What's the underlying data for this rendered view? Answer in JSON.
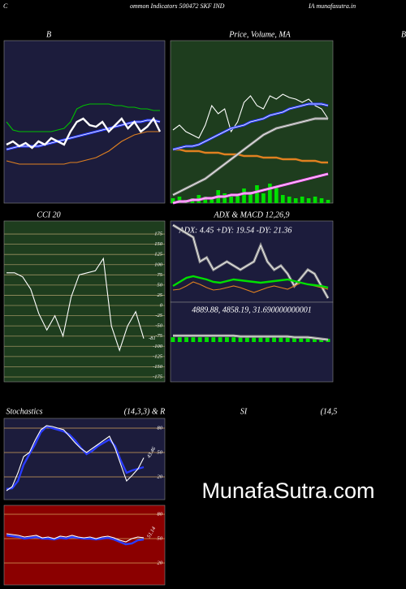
{
  "header": {
    "left": "C",
    "center": "ommon Indicators 500472 SKF IND",
    "right": "IA munafasutra.in",
    "edge": "B",
    "watermark": "MunafaSutra.com"
  },
  "chart_data": [
    {
      "type": "line",
      "title": "B",
      "background": "#1c1c3c",
      "ylim": [
        0,
        100
      ],
      "series": [
        {
          "color": "#00c000",
          "style": "normal",
          "values": [
            50,
            45,
            44,
            44,
            44,
            44,
            44,
            44,
            45,
            46,
            50,
            58,
            60,
            61,
            61,
            61,
            61,
            60,
            60,
            59,
            59,
            58,
            58,
            57,
            57
          ]
        },
        {
          "color": "#e08020",
          "style": "normal",
          "values": [
            26,
            25,
            24,
            24,
            24,
            24,
            24,
            24,
            24,
            24,
            25,
            25,
            26,
            27,
            28,
            30,
            32,
            35,
            38,
            40,
            42,
            43,
            44,
            44,
            44
          ]
        },
        {
          "color": "#2a3cff",
          "style": "double",
          "values": [
            33,
            34,
            35,
            35,
            35,
            35,
            36,
            37,
            38,
            39,
            40,
            41,
            42,
            43,
            44,
            45,
            46,
            47,
            48,
            49,
            50,
            50,
            51,
            51,
            50
          ]
        },
        {
          "color": "#ffffff",
          "style": "thick",
          "values": [
            36,
            38,
            35,
            37,
            34,
            38,
            36,
            40,
            38,
            36,
            44,
            50,
            52,
            48,
            47,
            50,
            44,
            48,
            52,
            46,
            50,
            44,
            47,
            52,
            44
          ]
        }
      ]
    },
    {
      "type": "line",
      "title": "Price,  Volume, MA",
      "background": "#1e3d1e",
      "ylim": [
        0,
        100
      ],
      "series": [
        {
          "type": "bar",
          "color": "#00e000",
          "values": [
            3,
            4,
            2,
            3,
            5,
            4,
            3,
            8,
            6,
            4,
            5,
            9,
            7,
            11,
            6,
            12,
            10,
            5,
            4,
            3,
            4,
            3,
            4,
            3,
            2
          ]
        },
        {
          "color": "#ffffff",
          "style": "normal",
          "values": [
            45,
            48,
            44,
            42,
            40,
            48,
            60,
            55,
            58,
            44,
            50,
            62,
            66,
            60,
            58,
            66,
            64,
            67,
            65,
            64,
            62,
            64,
            60,
            58,
            52
          ]
        },
        {
          "color": "#e08020",
          "style": "thick",
          "values": [
            33,
            33,
            32,
            32,
            32,
            31,
            31,
            31,
            30,
            30,
            30,
            29,
            29,
            29,
            28,
            28,
            28,
            27,
            27,
            27,
            26,
            26,
            26,
            25,
            25
          ]
        },
        {
          "color": "#909090",
          "style": "double",
          "values": [
            5,
            7,
            9,
            11,
            13,
            15,
            18,
            21,
            24,
            27,
            30,
            33,
            36,
            39,
            42,
            44,
            46,
            47,
            48,
            49,
            50,
            51,
            52,
            52,
            52
          ]
        },
        {
          "color": "#ff60ff",
          "style": "double",
          "values": [
            0,
            1,
            1,
            2,
            2,
            3,
            3,
            4,
            4,
            5,
            5,
            6,
            6,
            7,
            8,
            9,
            10,
            11,
            12,
            13,
            14,
            15,
            16,
            17,
            18
          ]
        },
        {
          "color": "#2a3cff",
          "style": "double",
          "values": [
            33,
            34,
            35,
            35,
            36,
            38,
            40,
            42,
            44,
            46,
            47,
            48,
            50,
            51,
            52,
            54,
            55,
            56,
            58,
            59,
            60,
            61,
            61,
            61,
            60
          ]
        }
      ]
    },
    {
      "type": "line",
      "title": "CCI 20",
      "background": "#1e3d1e",
      "ylim": [
        -187,
        207
      ],
      "grid": true,
      "grid_color": "#9a9060",
      "yticks": [
        175,
        150,
        125,
        100,
        75,
        50,
        25,
        0,
        -25,
        -50,
        -75,
        -100,
        -125,
        -150,
        -175
      ],
      "series": [
        {
          "color": "#ffffff",
          "style": "normal",
          "label_last": true,
          "values": [
            80,
            80,
            70,
            40,
            -20,
            -60,
            -25,
            -75,
            20,
            75,
            80,
            85,
            115,
            -50,
            -110,
            -50,
            -15,
            -81
          ]
        }
      ]
    },
    {
      "type": "line",
      "title": "ADX  & MACD 12,26,9",
      "subtitle": "ADX: 4.45 +DY: 19.54 -DY: 21.36",
      "background": "#1c1c3c",
      "ylim": [
        0,
        100
      ],
      "series": [
        {
          "color": "#909090",
          "style": "double",
          "values": [
            95,
            90,
            85,
            80,
            50,
            55,
            40,
            45,
            50,
            45,
            40,
            45,
            50,
            70,
            50,
            40,
            45,
            35,
            20,
            30,
            40,
            35,
            20,
            5
          ]
        },
        {
          "color": "#e08020",
          "style": "normal",
          "values": [
            15,
            16,
            20,
            25,
            22,
            18,
            15,
            16,
            18,
            20,
            18,
            15,
            12,
            15,
            18,
            20,
            18,
            16,
            20,
            24,
            22,
            20,
            18,
            16
          ]
        },
        {
          "color": "#00e000",
          "style": "thick",
          "values": [
            20,
            25,
            30,
            32,
            30,
            28,
            25,
            24,
            26,
            28,
            27,
            26,
            25,
            24,
            25,
            26,
            27,
            28,
            26,
            24,
            22,
            21,
            20,
            18
          ]
        }
      ]
    },
    {
      "type": "line",
      "subtitle": "4889.88, 4858.19, 31.690000000001",
      "background": "#1c1c3c",
      "ylim": [
        -50,
        50
      ],
      "series": [
        {
          "type": "bar",
          "color": "#00e000",
          "values": [
            6,
            6,
            6,
            6,
            6,
            6,
            6,
            6,
            6,
            6,
            6,
            6,
            6,
            6,
            6,
            6,
            6,
            6,
            5,
            5,
            5,
            5,
            4,
            4
          ]
        },
        {
          "color": "#909090",
          "style": "double",
          "values": [
            8,
            8,
            8,
            8,
            8,
            8,
            8,
            8,
            8,
            8,
            7,
            7,
            7,
            7,
            7,
            7,
            7,
            7,
            6,
            6,
            6,
            5,
            4,
            3
          ]
        }
      ]
    },
    {
      "type": "line",
      "title": "Stochastics",
      "subtitle": "(14,3,3) & R",
      "background": "#1c1c3c",
      "ylim": [
        -8,
        92
      ],
      "grid": true,
      "grid_color": "#d2a05a",
      "yticks": [
        80,
        50,
        20
      ],
      "series": [
        {
          "color": "#2a3cff",
          "style": "thick",
          "values": [
            5,
            6,
            15,
            35,
            48,
            60,
            75,
            82,
            80,
            78,
            76,
            72,
            65,
            56,
            48,
            52,
            58,
            62,
            66,
            58,
            40,
            25,
            28,
            30,
            32
          ]
        },
        {
          "color": "#ffffff",
          "style": "normal",
          "label_last": true,
          "values": [
            3,
            8,
            25,
            45,
            50,
            65,
            78,
            83,
            82,
            80,
            78,
            70,
            62,
            55,
            50,
            55,
            60,
            65,
            70,
            55,
            35,
            15,
            22,
            30,
            43.46
          ]
        }
      ]
    },
    {
      "type": "line",
      "title": "SI",
      "subtitle": "(14,5",
      "background": "#8b0000",
      "ylim": [
        -7,
        91
      ],
      "grid": true,
      "grid_color": "#d2a05a",
      "yticks": [
        80,
        50,
        20
      ],
      "series": [
        {
          "color": "#2a3cff",
          "style": "thick",
          "values": [
            54,
            53,
            52,
            50,
            51,
            52,
            50,
            50,
            49,
            51,
            50,
            52,
            51,
            50,
            50,
            49,
            50,
            51,
            49,
            46,
            43,
            44,
            48,
            49
          ]
        },
        {
          "color": "#ffffff",
          "style": "normal",
          "label_last": true,
          "values": [
            56,
            55,
            54,
            52,
            53,
            54,
            51,
            52,
            50,
            53,
            52,
            54,
            52,
            51,
            52,
            50,
            52,
            53,
            51,
            48,
            46,
            50,
            52,
            51.14
          ]
        }
      ]
    }
  ]
}
